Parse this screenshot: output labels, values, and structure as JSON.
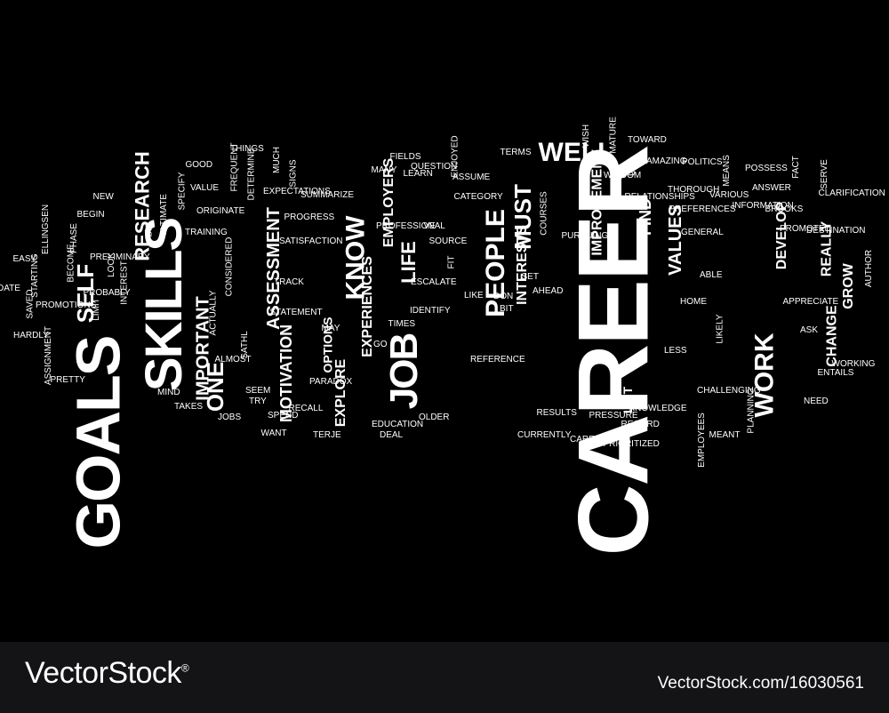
{
  "word_cloud": {
    "background": "#000000",
    "text_color": "#ffffff",
    "words": [
      "CAREER",
      "GOALS",
      "SKILLS",
      "JOB",
      "WORK",
      "KNOW",
      "PEOPLE",
      "SELF",
      "RESEARCH",
      "WELL",
      "MUST",
      "LIFE",
      "ONE",
      "IMPORTANT",
      "ASSESSMENT",
      "MOTIVATION",
      "EXPLORE",
      "EMPLOYERS",
      "EXPERIENCES",
      "INTERESTS",
      "IMPROVEMENT",
      "VALUES",
      "FIND",
      "DEVELOP",
      "REALLY",
      "GROW",
      "CHANGE",
      "LIST",
      "OPTIONS",
      "TOWARD",
      "WISH",
      "MATURE",
      "URL",
      "AMAZING",
      "POLITICS",
      "MEANS",
      "POSSESS",
      "WISDOM",
      "RELATIONSHIPS",
      "THOROUGH",
      "VARIOUS",
      "INFORMATION",
      "ANSWER",
      "FACT",
      "SERVE",
      "CLARIFICATION",
      "BROOKS",
      "PROMOTED",
      "DESTINATION",
      "AUTHOR",
      "PREFERENCES",
      "GENERAL",
      "ABLE",
      "HOME",
      "LIKELY",
      "APPRECIATE",
      "ASK",
      "LESS",
      "WORKING",
      "ENTAILS",
      "NEED",
      "KNOWLEDGE",
      "CHALLENGING",
      "PLANNING",
      "RECORD",
      "MEANT",
      "EMPLOYEES",
      "PRESSURE",
      "RESULTS",
      "CAREERS",
      "PRIORITIZED",
      "CURRENTLY",
      "REFERENCE",
      "BIT",
      "AHEAD",
      "SET",
      "LIKE",
      "ESCALATE",
      "TIMES",
      "IDENTIFY",
      "GO",
      "OLDER",
      "EDUCATION",
      "DEAL",
      "PARADOX",
      "TERJE",
      "RECALL",
      "SPEND",
      "WANT",
      "MAY",
      "TRY",
      "STATEMENT",
      "TRACK",
      "SATISFACTION",
      "PROGRESS",
      "EXPECTATIONS",
      "SUMMARIZE",
      "SIGNS",
      "MUCH",
      "DETERMINE",
      "THINGS",
      "FREQUENT",
      "CONSIDERED",
      "ORIGINATE",
      "GOOD",
      "VALUE",
      "SPECIFY",
      "ULTIMATE",
      "BIG",
      "TRAINING",
      "LOOK",
      "NEW",
      "BEGIN",
      "PHASE",
      "BECOME",
      "ELLINGSEN",
      "EASY",
      "STARTING",
      "DATE",
      "SAVED",
      "PROMOTIONS",
      "INTEREST",
      "PROBABLY",
      "LIMIT",
      "HARDLY",
      "ASSIGNMENT",
      "PRETTY",
      "MIND",
      "TAKES",
      "JOBS",
      "SEEM",
      "ACTUALLY",
      "ALMOST",
      "SATHL",
      "PRELIMINARY",
      "FIELDS",
      "MANY",
      "LEARN",
      "QUESTION",
      "ENJOYED",
      "ASSUME",
      "CATEGORY",
      "PROFESSIONAL",
      "SOURCE",
      "FIT",
      "VE",
      "DON",
      "TERMS",
      "COURSES",
      "PURSUING"
    ]
  },
  "footer": {
    "brand": "VectorStock",
    "trademark": "®",
    "image_id": "VectorStock.com/16030561"
  }
}
